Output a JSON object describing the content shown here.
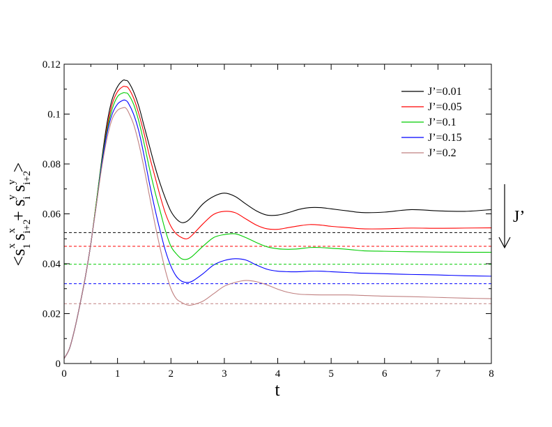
{
  "chart_data": {
    "type": "line",
    "title": "",
    "xlabel": "t",
    "ylabel": {
      "parts": [
        "<s",
        "1",
        "x",
        "s",
        "i+2",
        "x",
        "+ s",
        "i",
        "y",
        "s",
        "i+2",
        "y",
        ">"
      ]
    },
    "xlim": [
      0,
      8
    ],
    "ylim": [
      0,
      0.12
    ],
    "x_ticks": [
      "0",
      "1",
      "2",
      "3",
      "4",
      "5",
      "6",
      "7",
      "8"
    ],
    "y_ticks": [
      "0",
      "0.02",
      "0.04",
      "0.06",
      "0.08",
      "0.1",
      "0.12"
    ],
    "grid": false,
    "legend_position": "top-right",
    "annotation": {
      "text": "J’",
      "arrow": "down"
    },
    "series": [
      {
        "name": "J’=0.01",
        "color": "#000000",
        "x": [
          0,
          0.1,
          0.2,
          0.3,
          0.4,
          0.5,
          0.6,
          0.7,
          0.8,
          0.9,
          1.0,
          1.1,
          1.15,
          1.2,
          1.3,
          1.4,
          1.5,
          1.6,
          1.7,
          1.8,
          1.9,
          2.0,
          2.1,
          2.2,
          2.3,
          2.4,
          2.6,
          2.8,
          3.0,
          3.2,
          3.4,
          3.6,
          3.8,
          4.0,
          4.2,
          4.4,
          4.6,
          4.8,
          5.0,
          5.3,
          5.6,
          6.0,
          6.5,
          7.0,
          7.5,
          8.0
        ],
        "y": [
          0.002,
          0.006,
          0.014,
          0.024,
          0.035,
          0.048,
          0.064,
          0.081,
          0.096,
          0.106,
          0.111,
          0.1135,
          0.1135,
          0.113,
          0.109,
          0.103,
          0.095,
          0.087,
          0.079,
          0.072,
          0.066,
          0.061,
          0.058,
          0.0565,
          0.057,
          0.059,
          0.064,
          0.067,
          0.0683,
          0.067,
          0.064,
          0.0612,
          0.0595,
          0.0595,
          0.0605,
          0.0618,
          0.0625,
          0.0625,
          0.062,
          0.0612,
          0.0605,
          0.0607,
          0.0617,
          0.0612,
          0.061,
          0.0617
        ]
      },
      {
        "name": "J’=0.05",
        "color": "#ff0000",
        "x": [
          0,
          0.1,
          0.2,
          0.3,
          0.4,
          0.5,
          0.6,
          0.7,
          0.8,
          0.9,
          1.0,
          1.1,
          1.15,
          1.2,
          1.3,
          1.4,
          1.5,
          1.6,
          1.7,
          1.8,
          1.9,
          2.0,
          2.1,
          2.2,
          2.3,
          2.4,
          2.6,
          2.8,
          3.0,
          3.2,
          3.4,
          3.6,
          3.8,
          4.0,
          4.2,
          4.4,
          4.6,
          4.8,
          5.0,
          5.3,
          5.6,
          6.0,
          6.5,
          7.0,
          7.5,
          8.0
        ],
        "y": [
          0.002,
          0.006,
          0.014,
          0.024,
          0.035,
          0.048,
          0.064,
          0.08,
          0.094,
          0.104,
          0.109,
          0.111,
          0.111,
          0.1105,
          0.1065,
          0.1,
          0.092,
          0.083,
          0.075,
          0.067,
          0.06,
          0.055,
          0.052,
          0.0505,
          0.05,
          0.0515,
          0.056,
          0.0598,
          0.061,
          0.0605,
          0.058,
          0.0555,
          0.054,
          0.0538,
          0.0545,
          0.0552,
          0.0557,
          0.0555,
          0.055,
          0.0545,
          0.054,
          0.054,
          0.0543,
          0.0542,
          0.0543,
          0.0544
        ]
      },
      {
        "name": "J’=0.1",
        "color": "#00cc00",
        "x": [
          0,
          0.1,
          0.2,
          0.3,
          0.4,
          0.5,
          0.6,
          0.7,
          0.8,
          0.9,
          1.0,
          1.1,
          1.15,
          1.2,
          1.3,
          1.4,
          1.5,
          1.6,
          1.7,
          1.8,
          1.9,
          2.0,
          2.1,
          2.2,
          2.3,
          2.4,
          2.6,
          2.8,
          3.0,
          3.2,
          3.4,
          3.6,
          3.8,
          4.0,
          4.2,
          4.4,
          4.6,
          4.8,
          5.0,
          5.3,
          5.6,
          6.0,
          6.5,
          7.0,
          7.5,
          8.0
        ],
        "y": [
          0.002,
          0.006,
          0.014,
          0.024,
          0.035,
          0.048,
          0.064,
          0.08,
          0.093,
          0.102,
          0.107,
          0.1085,
          0.1085,
          0.108,
          0.104,
          0.097,
          0.088,
          0.078,
          0.069,
          0.061,
          0.053,
          0.047,
          0.044,
          0.042,
          0.0418,
          0.043,
          0.047,
          0.0505,
          0.0517,
          0.052,
          0.0505,
          0.0485,
          0.0468,
          0.046,
          0.0458,
          0.046,
          0.0465,
          0.0465,
          0.0462,
          0.0458,
          0.0452,
          0.045,
          0.0448,
          0.0447,
          0.0446,
          0.0446
        ]
      },
      {
        "name": "J’=0.15",
        "color": "#0000ff",
        "x": [
          0,
          0.1,
          0.2,
          0.3,
          0.4,
          0.5,
          0.6,
          0.7,
          0.8,
          0.9,
          1.0,
          1.1,
          1.15,
          1.2,
          1.3,
          1.4,
          1.5,
          1.6,
          1.7,
          1.8,
          1.9,
          2.0,
          2.1,
          2.2,
          2.3,
          2.4,
          2.6,
          2.8,
          3.0,
          3.2,
          3.4,
          3.6,
          3.8,
          4.0,
          4.2,
          4.4,
          4.6,
          4.8,
          5.0,
          5.3,
          5.6,
          6.0,
          6.5,
          7.0,
          7.5,
          8.0
        ],
        "y": [
          0.002,
          0.006,
          0.014,
          0.024,
          0.035,
          0.048,
          0.063,
          0.079,
          0.092,
          0.1,
          0.104,
          0.1055,
          0.1055,
          0.1045,
          0.1,
          0.093,
          0.083,
          0.072,
          0.062,
          0.053,
          0.045,
          0.039,
          0.035,
          0.033,
          0.0325,
          0.033,
          0.036,
          0.0395,
          0.0413,
          0.042,
          0.0415,
          0.0395,
          0.0378,
          0.037,
          0.0368,
          0.0368,
          0.037,
          0.037,
          0.0368,
          0.0365,
          0.0362,
          0.036,
          0.0357,
          0.0355,
          0.0352,
          0.035
        ]
      },
      {
        "name": "J’=0.2",
        "color": "#c08080",
        "x": [
          0,
          0.1,
          0.2,
          0.3,
          0.4,
          0.5,
          0.6,
          0.7,
          0.8,
          0.9,
          1.0,
          1.1,
          1.15,
          1.2,
          1.3,
          1.4,
          1.5,
          1.6,
          1.7,
          1.8,
          1.9,
          2.0,
          2.1,
          2.2,
          2.3,
          2.4,
          2.6,
          2.8,
          3.0,
          3.2,
          3.4,
          3.6,
          3.8,
          4.0,
          4.2,
          4.4,
          4.6,
          4.8,
          5.0,
          5.3,
          5.6,
          6.0,
          6.5,
          7.0,
          7.5,
          8.0
        ],
        "y": [
          0.002,
          0.006,
          0.014,
          0.024,
          0.035,
          0.048,
          0.063,
          0.078,
          0.09,
          0.098,
          0.1015,
          0.1025,
          0.1025,
          0.101,
          0.096,
          0.088,
          0.078,
          0.067,
          0.056,
          0.046,
          0.037,
          0.03,
          0.026,
          0.0245,
          0.0235,
          0.0235,
          0.025,
          0.028,
          0.031,
          0.0325,
          0.0333,
          0.0328,
          0.0315,
          0.0298,
          0.0285,
          0.0278,
          0.0276,
          0.0275,
          0.0275,
          0.0275,
          0.0273,
          0.027,
          0.0268,
          0.0265,
          0.0262,
          0.026
        ]
      }
    ],
    "reference_lines": [
      {
        "y": 0.0525,
        "color": "#000000",
        "style": "dashed"
      },
      {
        "y": 0.047,
        "color": "#ff0000",
        "style": "dashed"
      },
      {
        "y": 0.0398,
        "color": "#00cc00",
        "style": "dashed"
      },
      {
        "y": 0.032,
        "color": "#0000ff",
        "style": "dashed"
      },
      {
        "y": 0.024,
        "color": "#c08080",
        "style": "dashed"
      }
    ]
  }
}
